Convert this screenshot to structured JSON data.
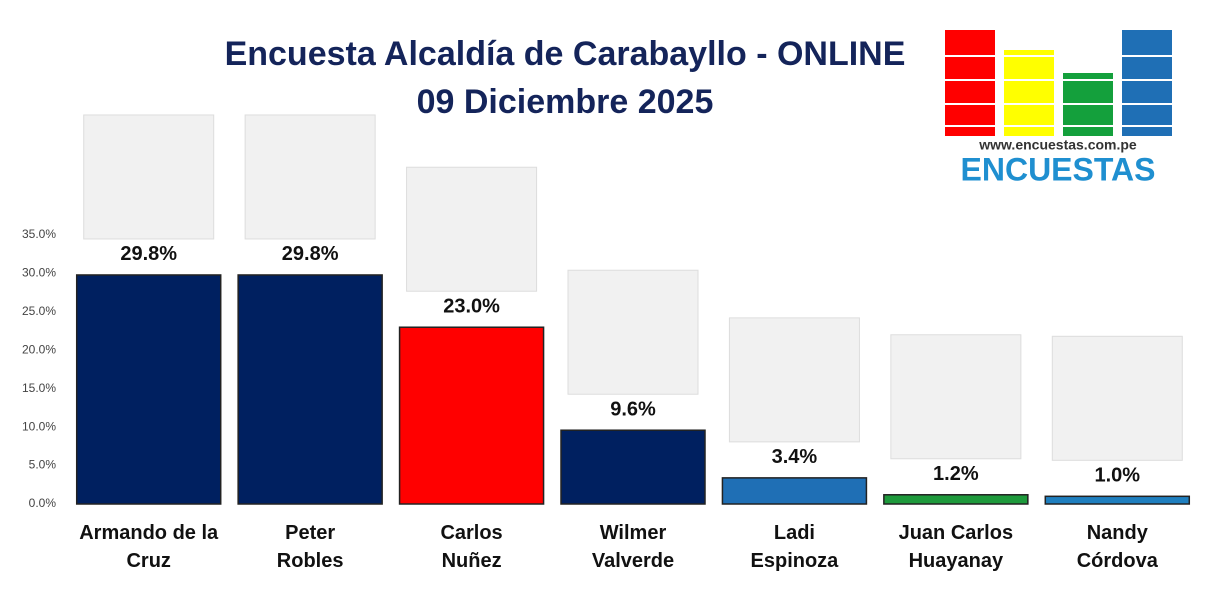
{
  "chart_data": {
    "type": "bar",
    "title": "Encuesta Alcaldía de Carabayllo - ONLINE",
    "subtitle": "09 Diciembre 2025",
    "categories": [
      "Armando de la\nCruz",
      "Peter\nRobles",
      "Carlos\nNuñez",
      "Wilmer\nValverde",
      "Ladi\nEspinoza",
      "Juan Carlos\nHuayanay",
      "Nandy\nCórdova"
    ],
    "values": [
      29.8,
      29.8,
      23.0,
      9.6,
      3.4,
      1.2,
      1.0
    ],
    "value_labels": [
      "29.8%",
      "29.8%",
      "23.0%",
      "9.6%",
      "3.4%",
      "1.2%",
      "1.0%"
    ],
    "colors": [
      "#002060",
      "#002060",
      "#ff0000",
      "#002060",
      "#1f6fb5",
      "#1e9a3c",
      "#1f7fbf"
    ],
    "ylim": [
      0,
      35
    ],
    "yticks": [
      {
        "value": 0,
        "label": "0.0%"
      },
      {
        "value": 5,
        "label": "5.0%"
      },
      {
        "value": 10,
        "label": "10.0%"
      },
      {
        "value": 15,
        "label": "15.0%"
      },
      {
        "value": 20,
        "label": "20.0%"
      },
      {
        "value": 25,
        "label": "25.0%"
      },
      {
        "value": 30,
        "label": "30.0%"
      },
      {
        "value": 35,
        "label": "35.0%"
      }
    ],
    "grid": false,
    "logo": {
      "url": "www.encuestas.com.pe",
      "name": "ENCUESTAS"
    }
  }
}
